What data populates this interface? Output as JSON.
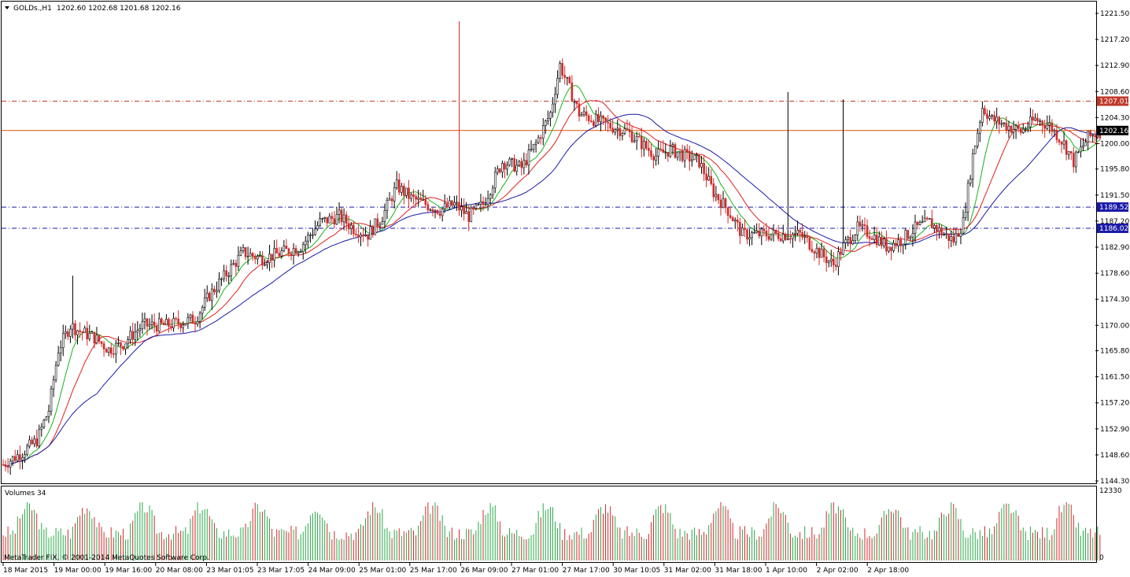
{
  "header": {
    "symbol_label": "GOLDs.,H1",
    "ohlc": "1202.60 1202.68 1201.68 1202.16"
  },
  "volume_panel": {
    "label": "Volumes 34",
    "y_labels": [
      "12330",
      "0"
    ]
  },
  "watermark": "MetaTrader FIX, © 2001-2014 MetaQuotes Software Corp.",
  "colors": {
    "bull": "#2aa84a",
    "bear": "#d12a2a",
    "ma_fast": "#19b319",
    "ma_mid": "#e02020",
    "ma_slow": "#1a1aa8",
    "resistance": "#c0392b",
    "support": "#1a1aa8",
    "current_price": "#d35400"
  },
  "chart_data": {
    "type": "candlestick",
    "price_axis": {
      "labels": [
        "1221.50",
        "1217.20",
        "1212.90",
        "1208.60",
        "1204.30",
        "1200.00",
        "1195.80",
        "1191.50",
        "1187.20",
        "1182.90",
        "1178.60",
        "1174.30",
        "1170.00",
        "1165.80",
        "1161.50",
        "1157.20",
        "1152.90",
        "1148.60",
        "1144.30"
      ],
      "ylim": [
        1144.3,
        1221.5
      ]
    },
    "x_axis_labels": [
      "18 Mar 2015",
      "19 Mar 00:00",
      "19 Mar 16:00",
      "20 Mar 08:00",
      "23 Mar 01:05",
      "23 Mar 17:05",
      "24 Mar 09:00",
      "25 Mar 01:00",
      "25 Mar 17:00",
      "26 Mar 09:00",
      "27 Mar 01:00",
      "27 Mar 17:00",
      "30 Mar 10:05",
      "31 Mar 02:00",
      "31 Mar 18:00",
      "1 Apr 10:00",
      "2 Apr 02:00",
      "2 Apr 18:00"
    ],
    "horizontal_lines": [
      {
        "price": 1207.01,
        "label": "1207.01",
        "style": "dash-dot",
        "kind": "resistance"
      },
      {
        "price": 1189.52,
        "label": "1189.52",
        "style": "dash-dot",
        "kind": "support"
      },
      {
        "price": 1186.02,
        "label": "1186.02",
        "style": "dash-dot",
        "kind": "support"
      },
      {
        "price": 1202.16,
        "label": "1202.16",
        "style": "solid",
        "kind": "current"
      }
    ],
    "path_anchors": [
      [
        0,
        1147
      ],
      [
        8,
        1149
      ],
      [
        14,
        1151
      ],
      [
        19,
        1156
      ],
      [
        23,
        1166
      ],
      [
        28,
        1170
      ],
      [
        32,
        1169
      ],
      [
        38,
        1168
      ],
      [
        44,
        1166
      ],
      [
        50,
        1167
      ],
      [
        58,
        1170
      ],
      [
        68,
        1170
      ],
      [
        80,
        1171
      ],
      [
        86,
        1175
      ],
      [
        92,
        1178
      ],
      [
        100,
        1182
      ],
      [
        108,
        1181
      ],
      [
        116,
        1182
      ],
      [
        124,
        1183
      ],
      [
        132,
        1187
      ],
      [
        140,
        1188
      ],
      [
        146,
        1186
      ],
      [
        152,
        1185
      ],
      [
        158,
        1188
      ],
      [
        164,
        1193
      ],
      [
        170,
        1191
      ],
      [
        176,
        1190
      ],
      [
        182,
        1189
      ],
      [
        188,
        1190
      ],
      [
        194,
        1188
      ],
      [
        200,
        1190
      ],
      [
        208,
        1197
      ],
      [
        216,
        1196
      ],
      [
        222,
        1200
      ],
      [
        228,
        1205
      ],
      [
        232,
        1213
      ],
      [
        236,
        1209
      ],
      [
        240,
        1205
      ],
      [
        246,
        1204
      ],
      [
        252,
        1203
      ],
      [
        260,
        1202
      ],
      [
        266,
        1200
      ],
      [
        272,
        1198
      ],
      [
        278,
        1199
      ],
      [
        284,
        1198
      ],
      [
        290,
        1197
      ],
      [
        296,
        1192
      ],
      [
        302,
        1189
      ],
      [
        308,
        1185
      ],
      [
        314,
        1185
      ],
      [
        320,
        1185
      ],
      [
        326,
        1185
      ],
      [
        332,
        1185
      ],
      [
        340,
        1182
      ],
      [
        346,
        1180
      ],
      [
        350,
        1183
      ],
      [
        356,
        1186
      ],
      [
        362,
        1185
      ],
      [
        368,
        1183
      ],
      [
        374,
        1184
      ],
      [
        380,
        1186
      ],
      [
        386,
        1187
      ],
      [
        392,
        1185
      ],
      [
        396,
        1184
      ],
      [
        400,
        1187
      ],
      [
        404,
        1198
      ],
      [
        408,
        1206
      ],
      [
        412,
        1204
      ],
      [
        418,
        1203
      ],
      [
        424,
        1202
      ],
      [
        430,
        1204
      ],
      [
        436,
        1203
      ],
      [
        442,
        1200
      ],
      [
        446,
        1197
      ],
      [
        452,
        1201
      ],
      [
        457,
        1202
      ]
    ],
    "volume_ylim": [
      0,
      12330
    ]
  }
}
